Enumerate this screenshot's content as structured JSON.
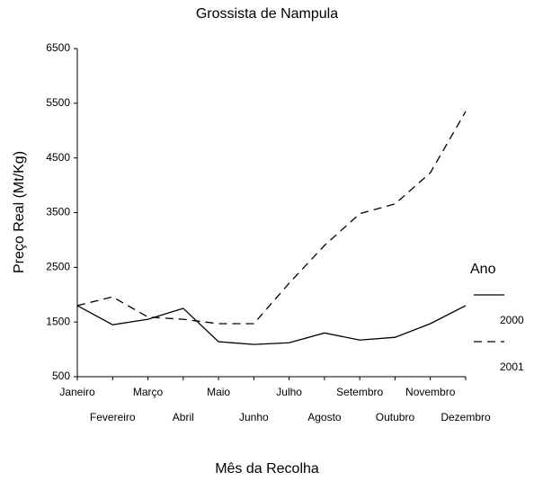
{
  "chart_data": {
    "type": "line",
    "title": "Grossista de Nampula",
    "x_label": "Mês da Recolha",
    "y_label": "Preço Real (Mt/Kg)",
    "categories": [
      "Janeiro",
      "Fevereiro",
      "Março",
      "Abril",
      "Maio",
      "Junho",
      "Julho",
      "Agosto",
      "Setembro",
      "Outubro",
      "Novembro",
      "Dezembro"
    ],
    "series": [
      {
        "name": "2000",
        "color": "#000000",
        "dash": "solid",
        "values": [
          1800,
          1450,
          1550,
          1750,
          1140,
          1090,
          1120,
          1300,
          1170,
          1220,
          1470,
          1800
        ]
      },
      {
        "name": "2001",
        "color": "#000000",
        "dash": "dashed",
        "values": [
          1800,
          1960,
          1590,
          1550,
          1470,
          1470,
          2210,
          2900,
          3480,
          3660,
          4230,
          5350
        ]
      }
    ],
    "legend_title": "Ano",
    "legend": "right",
    "ylim": [
      500,
      6500
    ],
    "yticks": [
      500,
      1500,
      2500,
      3500,
      4500,
      5500,
      6500
    ],
    "grid": false
  }
}
